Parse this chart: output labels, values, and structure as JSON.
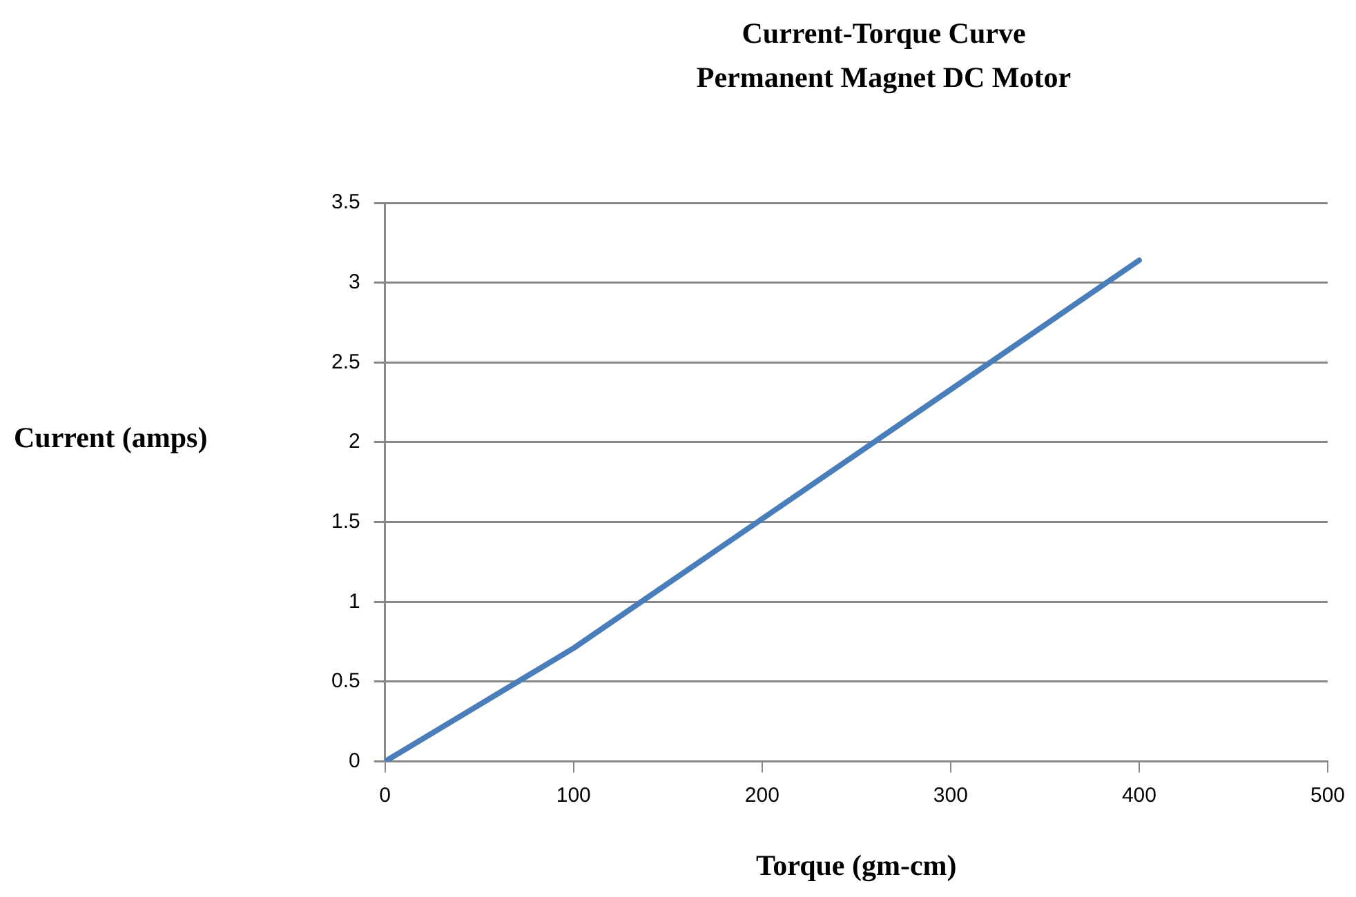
{
  "chart_data": {
    "type": "line",
    "title": "Current-Torque Curve\nPermanent Magnet DC Motor",
    "xlabel": "Torque (gm-cm)",
    "ylabel": "Current (amps)",
    "x": [
      0,
      100,
      200,
      300,
      400
    ],
    "series": [
      {
        "color": "#4a7ebb",
        "values": [
          0,
          0.71,
          1.52,
          2.33,
          3.14
        ]
      }
    ],
    "xlim": [
      0,
      500
    ],
    "xticks": [
      0,
      100,
      200,
      300,
      400,
      500
    ],
    "ylim": [
      0,
      3.5
    ],
    "yticks": [
      0,
      0.5,
      1,
      1.5,
      2,
      2.5,
      3,
      3.5
    ],
    "grid": "y",
    "legend": false,
    "marker": "none",
    "line_style": "solid"
  }
}
